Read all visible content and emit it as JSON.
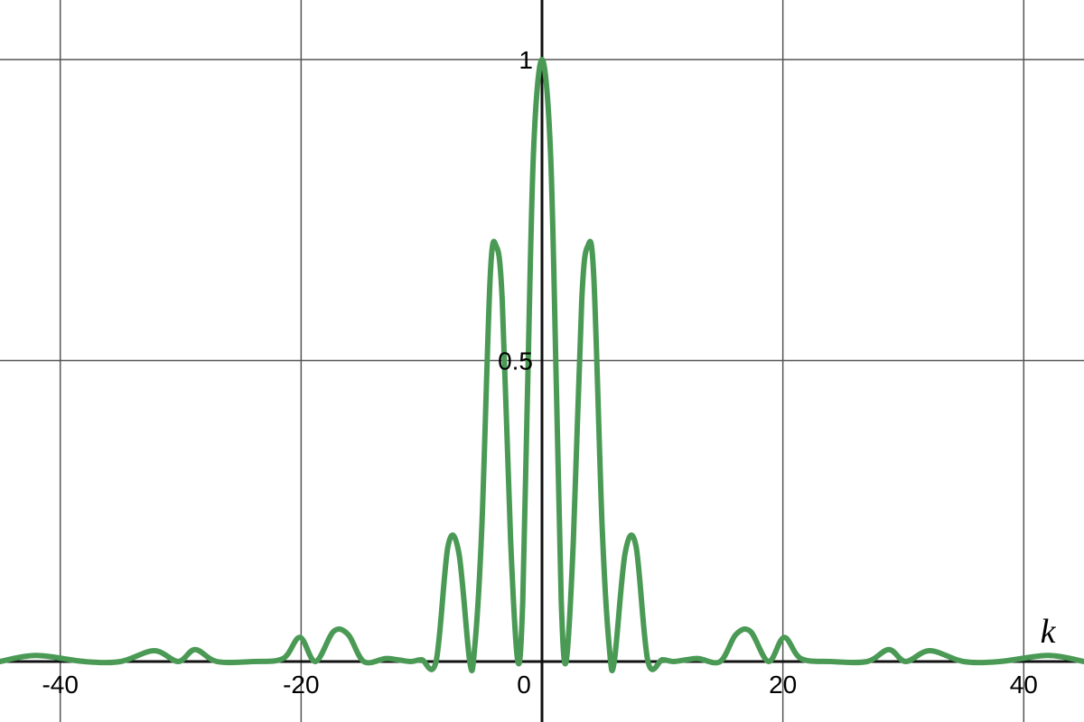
{
  "chart_data": {
    "type": "line",
    "title": "",
    "xlabel": "k",
    "ylabel": "",
    "xlim": [
      -45,
      45
    ],
    "ylim": [
      -0.1,
      1.1
    ],
    "grid": true,
    "x_ticks": [
      -40,
      -20,
      0,
      20,
      40
    ],
    "x_tick_labels": [
      "-40",
      "-20",
      "0",
      "20",
      "40"
    ],
    "y_ticks": [
      0.5,
      1
    ],
    "y_tick_labels": [
      "0.5",
      "1"
    ],
    "series": [
      {
        "color": "#4a9a55",
        "x": [
          -45,
          -42,
          -38,
          -35,
          -32.2,
          -30.2,
          -28.8,
          -27,
          -24,
          -21.5,
          -20.1,
          -18.8,
          -17.3,
          -16.1,
          -14.8,
          -13,
          -12,
          -10.9,
          -10,
          -8.8,
          -7.8,
          -6.9,
          -6,
          -5.6,
          -5,
          -4.3,
          -3.8,
          -3.3,
          -2.6,
          -2,
          -1.6,
          -1.2,
          -0.7,
          0,
          0.7,
          1.2,
          1.6,
          2,
          2.6,
          3.3,
          3.8,
          4.3,
          5,
          5.6,
          6,
          6.9,
          7.8,
          8.8,
          10,
          10.9,
          12,
          13,
          14.8,
          16.1,
          17.3,
          18.8,
          20.1,
          21.5,
          24,
          27,
          28.8,
          30.2,
          32.2,
          35,
          38,
          42,
          45
        ],
        "y": [
          0,
          0.01,
          0,
          0,
          0.018,
          0,
          0.02,
          0,
          0,
          0.005,
          0.04,
          0,
          0.05,
          0.045,
          0,
          0.005,
          0.003,
          0,
          0.003,
          0,
          0.192,
          0.18,
          0,
          0.02,
          0.22,
          0.64,
          0.69,
          0.6,
          0.2,
          0,
          0.1,
          0.45,
          0.85,
          1.0,
          0.85,
          0.45,
          0.1,
          0,
          0.2,
          0.6,
          0.69,
          0.64,
          0.22,
          0.02,
          0,
          0.18,
          0.192,
          0,
          0.003,
          0,
          0.003,
          0.005,
          0,
          0.045,
          0.05,
          0,
          0.04,
          0.005,
          0,
          0,
          0.02,
          0,
          0.018,
          0,
          0,
          0.01,
          0
        ]
      }
    ]
  }
}
